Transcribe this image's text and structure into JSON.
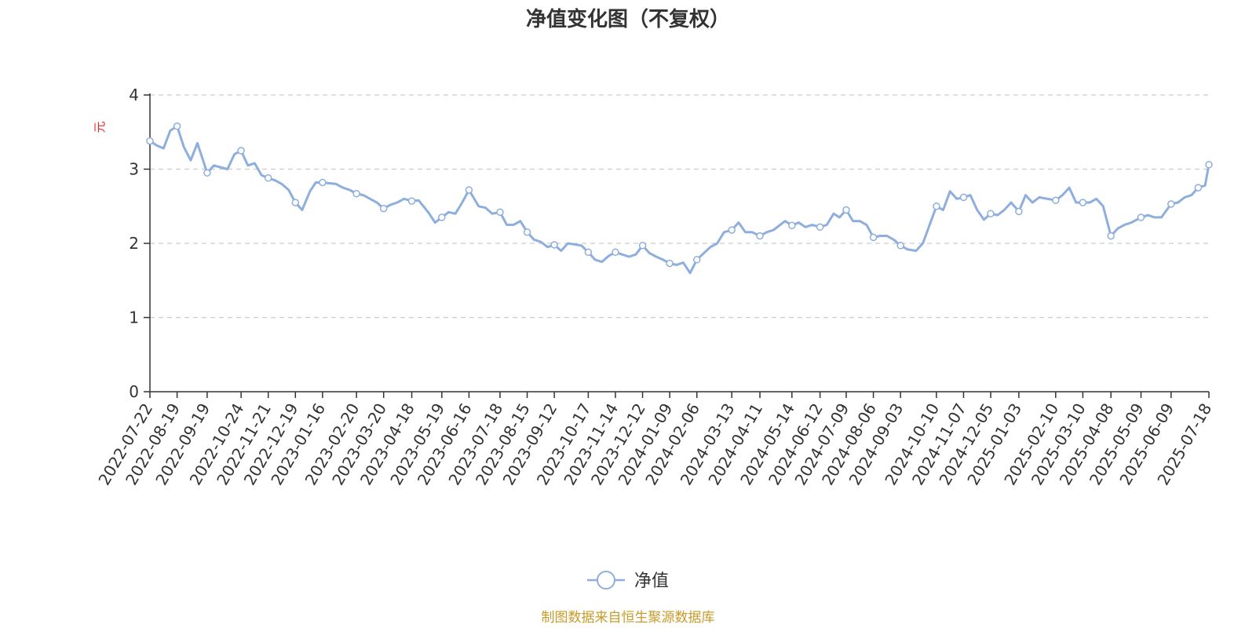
{
  "chart_data": {
    "type": "line",
    "title": "净值变化图（不复权）",
    "ylabel": "元",
    "ylim": [
      0,
      4
    ],
    "yticks": [
      0,
      1,
      2,
      3,
      4
    ],
    "grid": true,
    "legend_position": "bottom-center",
    "x_ticks": [
      "2022-07-22",
      "2022-08-19",
      "2022-09-19",
      "2022-10-24",
      "2022-11-21",
      "2022-12-19",
      "2023-01-16",
      "2023-02-20",
      "2023-03-20",
      "2023-04-18",
      "2023-05-19",
      "2023-06-16",
      "2023-07-18",
      "2023-08-15",
      "2023-09-12",
      "2023-10-17",
      "2023-11-14",
      "2023-12-12",
      "2024-01-09",
      "2024-02-06",
      "2024-03-13",
      "2024-04-11",
      "2024-05-14",
      "2024-06-12",
      "2024-07-09",
      "2024-08-06",
      "2024-09-03",
      "2024-10-10",
      "2024-11-07",
      "2024-12-05",
      "2025-01-03",
      "2025-02-10",
      "2025-03-10",
      "2025-04-08",
      "2025-05-09",
      "2025-06-09",
      "2025-07-18"
    ],
    "series": [
      {
        "name": "净值",
        "color": "#8eaedd",
        "x": [
          "2022-07-22",
          "2022-07-29",
          "2022-08-05",
          "2022-08-12",
          "2022-08-19",
          "2022-08-26",
          "2022-09-02",
          "2022-09-09",
          "2022-09-19",
          "2022-09-26",
          "2022-10-10",
          "2022-10-17",
          "2022-10-24",
          "2022-10-31",
          "2022-11-07",
          "2022-11-14",
          "2022-11-21",
          "2022-11-28",
          "2022-12-05",
          "2022-12-12",
          "2022-12-19",
          "2022-12-26",
          "2023-01-03",
          "2023-01-09",
          "2023-01-16",
          "2023-01-30",
          "2023-02-06",
          "2023-02-13",
          "2023-02-20",
          "2023-02-27",
          "2023-03-06",
          "2023-03-13",
          "2023-03-20",
          "2023-03-27",
          "2023-04-03",
          "2023-04-10",
          "2023-04-18",
          "2023-04-25",
          "2023-05-05",
          "2023-05-12",
          "2023-05-19",
          "2023-05-26",
          "2023-06-02",
          "2023-06-09",
          "2023-06-16",
          "2023-06-26",
          "2023-07-03",
          "2023-07-10",
          "2023-07-18",
          "2023-07-25",
          "2023-08-01",
          "2023-08-08",
          "2023-08-15",
          "2023-08-22",
          "2023-08-29",
          "2023-09-05",
          "2023-09-12",
          "2023-09-19",
          "2023-09-26",
          "2023-10-10",
          "2023-10-17",
          "2023-10-24",
          "2023-10-31",
          "2023-11-07",
          "2023-11-14",
          "2023-11-21",
          "2023-11-28",
          "2023-12-05",
          "2023-12-12",
          "2023-12-19",
          "2023-12-26",
          "2024-01-02",
          "2024-01-09",
          "2024-01-16",
          "2024-01-23",
          "2024-01-30",
          "2024-02-06",
          "2024-02-20",
          "2024-02-27",
          "2024-03-05",
          "2024-03-13",
          "2024-03-20",
          "2024-03-27",
          "2024-04-03",
          "2024-04-11",
          "2024-04-18",
          "2024-04-25",
          "2024-05-07",
          "2024-05-14",
          "2024-05-21",
          "2024-05-28",
          "2024-06-04",
          "2024-06-12",
          "2024-06-19",
          "2024-06-26",
          "2024-07-02",
          "2024-07-09",
          "2024-07-16",
          "2024-07-23",
          "2024-07-30",
          "2024-08-06",
          "2024-08-13",
          "2024-08-20",
          "2024-08-27",
          "2024-09-03",
          "2024-09-10",
          "2024-09-19",
          "2024-09-26",
          "2024-10-10",
          "2024-10-17",
          "2024-10-24",
          "2024-10-31",
          "2024-11-07",
          "2024-11-14",
          "2024-11-21",
          "2024-11-28",
          "2024-12-05",
          "2024-12-12",
          "2024-12-19",
          "2024-12-26",
          "2025-01-03",
          "2025-01-10",
          "2025-01-17",
          "2025-01-24",
          "2025-02-10",
          "2025-02-17",
          "2025-02-24",
          "2025-03-03",
          "2025-03-10",
          "2025-03-17",
          "2025-03-24",
          "2025-03-31",
          "2025-04-08",
          "2025-04-15",
          "2025-04-22",
          "2025-04-29",
          "2025-05-09",
          "2025-05-16",
          "2025-05-23",
          "2025-05-30",
          "2025-06-09",
          "2025-06-16",
          "2025-06-23",
          "2025-06-30",
          "2025-07-07",
          "2025-07-14",
          "2025-07-18"
        ],
        "y": [
          3.38,
          3.32,
          3.28,
          3.52,
          3.58,
          3.3,
          3.12,
          3.35,
          2.95,
          3.05,
          3.0,
          3.2,
          3.25,
          3.05,
          3.08,
          2.92,
          2.88,
          2.85,
          2.8,
          2.72,
          2.55,
          2.45,
          2.7,
          2.82,
          2.82,
          2.8,
          2.75,
          2.72,
          2.67,
          2.65,
          2.6,
          2.55,
          2.47,
          2.52,
          2.55,
          2.6,
          2.57,
          2.58,
          2.42,
          2.28,
          2.35,
          2.42,
          2.4,
          2.55,
          2.72,
          2.5,
          2.48,
          2.4,
          2.42,
          2.25,
          2.25,
          2.3,
          2.15,
          2.05,
          2.02,
          1.95,
          1.98,
          1.9,
          2.0,
          1.97,
          1.88,
          1.78,
          1.75,
          1.83,
          1.88,
          1.85,
          1.82,
          1.85,
          1.97,
          1.87,
          1.82,
          1.78,
          1.73,
          1.71,
          1.74,
          1.6,
          1.78,
          1.95,
          2.0,
          2.15,
          2.18,
          2.28,
          2.15,
          2.15,
          2.1,
          2.15,
          2.18,
          2.3,
          2.24,
          2.28,
          2.22,
          2.25,
          2.22,
          2.25,
          2.4,
          2.35,
          2.45,
          2.3,
          2.3,
          2.25,
          2.08,
          2.1,
          2.1,
          2.05,
          1.97,
          1.92,
          1.9,
          2.0,
          2.5,
          2.45,
          2.7,
          2.6,
          2.62,
          2.65,
          2.45,
          2.32,
          2.4,
          2.38,
          2.45,
          2.55,
          2.43,
          2.65,
          2.55,
          2.62,
          2.58,
          2.65,
          2.75,
          2.55,
          2.55,
          2.55,
          2.6,
          2.5,
          2.1,
          2.2,
          2.25,
          2.28,
          2.35,
          2.38,
          2.35,
          2.35,
          2.53,
          2.55,
          2.62,
          2.65,
          2.75,
          2.78,
          3.06
        ]
      }
    ]
  },
  "source_text": "制图数据来自恒生聚源数据库",
  "colors": {
    "line": "#8eaedd",
    "axis": "#333333",
    "grid": "#cccccc",
    "ylabel": "#e8262a",
    "source": "#c89b2a"
  }
}
